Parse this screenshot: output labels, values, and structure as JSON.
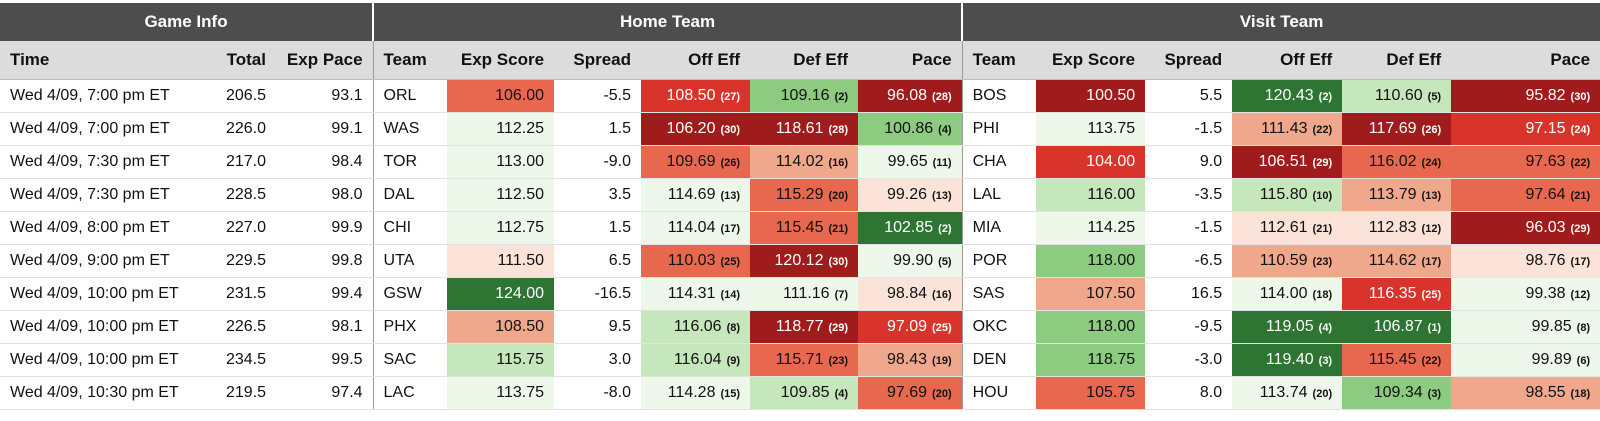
{
  "header_groups": {
    "game_info": "Game Info",
    "home_team": "Home Team",
    "visit_team": "Visit Team"
  },
  "columns": {
    "time": "Time",
    "total": "Total",
    "exp_pace": "Exp Pace",
    "team": "Team",
    "exp_score": "Exp Score",
    "spread": "Spread",
    "off_eff": "Off Eff",
    "def_eff": "Def Eff",
    "pace": "Pace"
  },
  "colors": {
    "dark_red": "#a01c1c",
    "red": "#d9342b",
    "red_orange": "#e8684f",
    "salmon": "#f0a88d",
    "pale_salmon": "#fbe3da",
    "white": "#ffffff",
    "pale_green": "#eef8ea",
    "light_green": "#c6e6bc",
    "green": "#8ccb80",
    "dark_green": "#2e7432"
  },
  "rows": [
    {
      "time": "Wed 4/09, 7:00 pm ET",
      "total": "206.5",
      "exp_pace": "93.1",
      "home": {
        "team": "ORL",
        "exp_score": {
          "v": "106.00",
          "c": "#e8684f"
        },
        "spread": "-5.5",
        "off": {
          "v": "108.50",
          "r": "(27)",
          "c": "#d9342b"
        },
        "def": {
          "v": "109.16",
          "r": "(2)",
          "c": "#8ccb80"
        },
        "pace": {
          "v": "96.08",
          "r": "(28)",
          "c": "#a01c1c"
        }
      },
      "visit": {
        "team": "BOS",
        "exp_score": {
          "v": "100.50",
          "c": "#a01c1c"
        },
        "spread": "5.5",
        "off": {
          "v": "120.43",
          "r": "(2)",
          "c": "#2e7432"
        },
        "def": {
          "v": "110.60",
          "r": "(5)",
          "c": "#c6e6bc"
        },
        "pace": {
          "v": "95.82",
          "r": "(30)",
          "c": "#a01c1c"
        }
      }
    },
    {
      "time": "Wed 4/09, 7:00 pm ET",
      "total": "226.0",
      "exp_pace": "99.1",
      "home": {
        "team": "WAS",
        "exp_score": {
          "v": "112.25",
          "c": "#eef8ea"
        },
        "spread": "1.5",
        "off": {
          "v": "106.20",
          "r": "(30)",
          "c": "#a01c1c"
        },
        "def": {
          "v": "118.61",
          "r": "(28)",
          "c": "#a01c1c"
        },
        "pace": {
          "v": "100.86",
          "r": "(4)",
          "c": "#8ccb80"
        }
      },
      "visit": {
        "team": "PHI",
        "exp_score": {
          "v": "113.75",
          "c": "#eef8ea"
        },
        "spread": "-1.5",
        "off": {
          "v": "111.43",
          "r": "(22)",
          "c": "#f0a88d"
        },
        "def": {
          "v": "117.69",
          "r": "(26)",
          "c": "#a01c1c"
        },
        "pace": {
          "v": "97.15",
          "r": "(24)",
          "c": "#d9342b"
        }
      }
    },
    {
      "time": "Wed 4/09, 7:30 pm ET",
      "total": "217.0",
      "exp_pace": "98.4",
      "home": {
        "team": "TOR",
        "exp_score": {
          "v": "113.00",
          "c": "#eef8ea"
        },
        "spread": "-9.0",
        "off": {
          "v": "109.69",
          "r": "(26)",
          "c": "#e8684f"
        },
        "def": {
          "v": "114.02",
          "r": "(16)",
          "c": "#f0a88d"
        },
        "pace": {
          "v": "99.65",
          "r": "(11)",
          "c": "#eef8ea"
        }
      },
      "visit": {
        "team": "CHA",
        "exp_score": {
          "v": "104.00",
          "c": "#d9342b"
        },
        "spread": "9.0",
        "off": {
          "v": "106.51",
          "r": "(29)",
          "c": "#a01c1c"
        },
        "def": {
          "v": "116.02",
          "r": "(24)",
          "c": "#e8684f"
        },
        "pace": {
          "v": "97.63",
          "r": "(22)",
          "c": "#e8684f"
        }
      }
    },
    {
      "time": "Wed 4/09, 7:30 pm ET",
      "total": "228.5",
      "exp_pace": "98.0",
      "home": {
        "team": "DAL",
        "exp_score": {
          "v": "112.50",
          "c": "#eef8ea"
        },
        "spread": "3.5",
        "off": {
          "v": "114.69",
          "r": "(13)",
          "c": "#eef8ea"
        },
        "def": {
          "v": "115.29",
          "r": "(20)",
          "c": "#e8684f"
        },
        "pace": {
          "v": "99.26",
          "r": "(13)",
          "c": "#fbe3da"
        }
      },
      "visit": {
        "team": "LAL",
        "exp_score": {
          "v": "116.00",
          "c": "#c6e6bc"
        },
        "spread": "-3.5",
        "off": {
          "v": "115.80",
          "r": "(10)",
          "c": "#c6e6bc"
        },
        "def": {
          "v": "113.79",
          "r": "(13)",
          "c": "#f0a88d"
        },
        "pace": {
          "v": "97.64",
          "r": "(21)",
          "c": "#e8684f"
        }
      }
    },
    {
      "time": "Wed 4/09, 8:00 pm ET",
      "total": "227.0",
      "exp_pace": "99.9",
      "home": {
        "team": "CHI",
        "exp_score": {
          "v": "112.75",
          "c": "#eef8ea"
        },
        "spread": "1.5",
        "off": {
          "v": "114.04",
          "r": "(17)",
          "c": "#eef8ea"
        },
        "def": {
          "v": "115.45",
          "r": "(21)",
          "c": "#e8684f"
        },
        "pace": {
          "v": "102.85",
          "r": "(2)",
          "c": "#2e7432"
        }
      },
      "visit": {
        "team": "MIA",
        "exp_score": {
          "v": "114.25",
          "c": "#eef8ea"
        },
        "spread": "-1.5",
        "off": {
          "v": "112.61",
          "r": "(21)",
          "c": "#fbe3da"
        },
        "def": {
          "v": "112.83",
          "r": "(12)",
          "c": "#fbe3da"
        },
        "pace": {
          "v": "96.03",
          "r": "(29)",
          "c": "#a01c1c"
        }
      }
    },
    {
      "time": "Wed 4/09, 9:00 pm ET",
      "total": "229.5",
      "exp_pace": "99.8",
      "home": {
        "team": "UTA",
        "exp_score": {
          "v": "111.50",
          "c": "#fbe3da"
        },
        "spread": "6.5",
        "off": {
          "v": "110.03",
          "r": "(25)",
          "c": "#e8684f"
        },
        "def": {
          "v": "120.12",
          "r": "(30)",
          "c": "#a01c1c"
        },
        "pace": {
          "v": "99.90",
          "r": "(5)",
          "c": "#eef8ea"
        }
      },
      "visit": {
        "team": "POR",
        "exp_score": {
          "v": "118.00",
          "c": "#8ccb80"
        },
        "spread": "-6.5",
        "off": {
          "v": "110.59",
          "r": "(23)",
          "c": "#f0a88d"
        },
        "def": {
          "v": "114.62",
          "r": "(17)",
          "c": "#f0a88d"
        },
        "pace": {
          "v": "98.76",
          "r": "(17)",
          "c": "#fbe3da"
        }
      }
    },
    {
      "time": "Wed 4/09, 10:00 pm ET",
      "total": "231.5",
      "exp_pace": "99.4",
      "home": {
        "team": "GSW",
        "exp_score": {
          "v": "124.00",
          "c": "#2e7432"
        },
        "spread": "-16.5",
        "off": {
          "v": "114.31",
          "r": "(14)",
          "c": "#eef8ea"
        },
        "def": {
          "v": "111.16",
          "r": "(7)",
          "c": "#eef8ea"
        },
        "pace": {
          "v": "98.84",
          "r": "(16)",
          "c": "#fbe3da"
        }
      },
      "visit": {
        "team": "SAS",
        "exp_score": {
          "v": "107.50",
          "c": "#f0a88d"
        },
        "spread": "16.5",
        "off": {
          "v": "114.00",
          "r": "(18)",
          "c": "#eef8ea"
        },
        "def": {
          "v": "116.35",
          "r": "(25)",
          "c": "#d9342b"
        },
        "pace": {
          "v": "99.38",
          "r": "(12)",
          "c": "#eef8ea"
        }
      }
    },
    {
      "time": "Wed 4/09, 10:00 pm ET",
      "total": "226.5",
      "exp_pace": "98.1",
      "home": {
        "team": "PHX",
        "exp_score": {
          "v": "108.50",
          "c": "#f0a88d"
        },
        "spread": "9.5",
        "off": {
          "v": "116.06",
          "r": "(8)",
          "c": "#c6e6bc"
        },
        "def": {
          "v": "118.77",
          "r": "(29)",
          "c": "#a01c1c"
        },
        "pace": {
          "v": "97.09",
          "r": "(25)",
          "c": "#d9342b"
        }
      },
      "visit": {
        "team": "OKC",
        "exp_score": {
          "v": "118.00",
          "c": "#8ccb80"
        },
        "spread": "-9.5",
        "off": {
          "v": "119.05",
          "r": "(4)",
          "c": "#2e7432"
        },
        "def": {
          "v": "106.87",
          "r": "(1)",
          "c": "#2e7432"
        },
        "pace": {
          "v": "99.85",
          "r": "(8)",
          "c": "#eef8ea"
        }
      }
    },
    {
      "time": "Wed 4/09, 10:00 pm ET",
      "total": "234.5",
      "exp_pace": "99.5",
      "home": {
        "team": "SAC",
        "exp_score": {
          "v": "115.75",
          "c": "#c6e6bc"
        },
        "spread": "3.0",
        "off": {
          "v": "116.04",
          "r": "(9)",
          "c": "#c6e6bc"
        },
        "def": {
          "v": "115.71",
          "r": "(23)",
          "c": "#e8684f"
        },
        "pace": {
          "v": "98.43",
          "r": "(19)",
          "c": "#f0a88d"
        }
      },
      "visit": {
        "team": "DEN",
        "exp_score": {
          "v": "118.75",
          "c": "#8ccb80"
        },
        "spread": "-3.0",
        "off": {
          "v": "119.40",
          "r": "(3)",
          "c": "#2e7432"
        },
        "def": {
          "v": "115.45",
          "r": "(22)",
          "c": "#e8684f"
        },
        "pace": {
          "v": "99.89",
          "r": "(6)",
          "c": "#eef8ea"
        }
      }
    },
    {
      "time": "Wed 4/09, 10:30 pm ET",
      "total": "219.5",
      "exp_pace": "97.4",
      "home": {
        "team": "LAC",
        "exp_score": {
          "v": "113.75",
          "c": "#eef8ea"
        },
        "spread": "-8.0",
        "off": {
          "v": "114.28",
          "r": "(15)",
          "c": "#eef8ea"
        },
        "def": {
          "v": "109.85",
          "r": "(4)",
          "c": "#c6e6bc"
        },
        "pace": {
          "v": "97.69",
          "r": "(20)",
          "c": "#e8684f"
        }
      },
      "visit": {
        "team": "HOU",
        "exp_score": {
          "v": "105.75",
          "c": "#e8684f"
        },
        "spread": "8.0",
        "off": {
          "v": "113.74",
          "r": "(20)",
          "c": "#eef8ea"
        },
        "def": {
          "v": "109.34",
          "r": "(3)",
          "c": "#8ccb80"
        },
        "pace": {
          "v": "98.55",
          "r": "(18)",
          "c": "#f0a88d"
        }
      }
    }
  ]
}
